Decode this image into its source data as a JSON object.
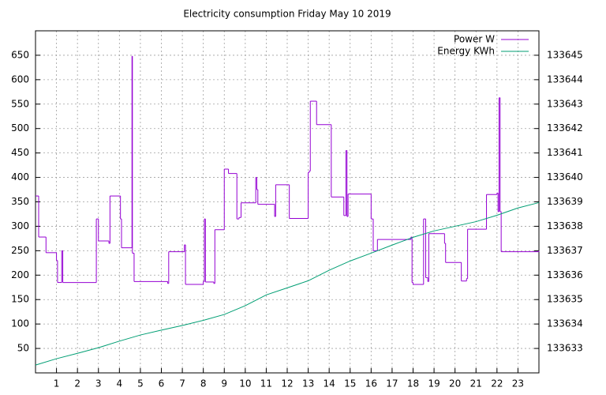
{
  "chart_data": {
    "type": "line",
    "title": "Electricity consumption Friday May 10 2019",
    "xlim": [
      0,
      24
    ],
    "xticks": [
      1,
      2,
      3,
      4,
      5,
      6,
      7,
      8,
      9,
      10,
      11,
      12,
      13,
      14,
      15,
      16,
      17,
      18,
      19,
      20,
      21,
      22,
      23
    ],
    "ylim": [
      0,
      700
    ],
    "yticks": [
      50,
      100,
      150,
      200,
      250,
      300,
      350,
      400,
      450,
      500,
      550,
      600,
      650
    ],
    "y2lim": [
      133632,
      133646
    ],
    "y2ticks": [
      133633,
      133634,
      133635,
      133636,
      133637,
      133638,
      133639,
      133640,
      133641,
      133642,
      133643,
      133644,
      133645
    ],
    "grid": true,
    "legend": "top-right",
    "series": [
      {
        "name": "Power W",
        "color": "#9400d3",
        "x": [
          0,
          0.15,
          0.5,
          1.0,
          1.05,
          1.25,
          1.3,
          2.9,
          3.0,
          3.5,
          3.55,
          4.05,
          4.1,
          4.6,
          4.62,
          4.7,
          6.3,
          6.35,
          7.1,
          7.15,
          8.0,
          8.05,
          8.1,
          8.5,
          8.55,
          9.0,
          9.2,
          9.6,
          9.7,
          9.8,
          10.5,
          10.55,
          10.6,
          11.4,
          11.45,
          12.1,
          13.0,
          13.05,
          13.1,
          13.4,
          14.1,
          14.7,
          14.8,
          14.85,
          14.9,
          16.0,
          16.1,
          16.3,
          17.9,
          17.95,
          18.0,
          18.5,
          18.6,
          18.7,
          18.75,
          19.5,
          19.55,
          20.3,
          20.55,
          20.6,
          21.5,
          22.0,
          22.05,
          22.1,
          22.15,
          22.2,
          24
        ],
        "values": [
          362,
          278,
          246,
          230,
          185,
          250,
          185,
          315,
          270,
          265,
          362,
          315,
          256,
          648,
          245,
          187,
          183,
          248,
          262,
          181,
          187,
          315,
          186,
          183,
          293,
          417,
          408,
          315,
          318,
          348,
          400,
          375,
          345,
          320,
          385,
          316,
          410,
          413,
          556,
          508,
          360,
          322,
          455,
          320,
          366,
          315,
          250,
          273,
          278,
          185,
          181,
          315,
          195,
          187,
          285,
          265,
          226,
          188,
          193,
          294,
          365,
          368,
          330,
          563,
          330,
          248,
          250
        ]
      },
      {
        "name": "Energy KWh",
        "color": "#009e73",
        "axis": "y2",
        "x": [
          0,
          1,
          2,
          3,
          4,
          5,
          6,
          7,
          8,
          9,
          10,
          11,
          12,
          13,
          14,
          15,
          16,
          17,
          18,
          19,
          20,
          21,
          22,
          23,
          24
        ],
        "values": [
          133632.32,
          133632.58,
          133632.8,
          133633.03,
          133633.3,
          133633.55,
          133633.75,
          133633.94,
          133634.15,
          133634.39,
          133634.75,
          133635.19,
          133635.48,
          133635.77,
          133636.2,
          133636.58,
          133636.9,
          133637.23,
          133637.55,
          133637.81,
          133638.0,
          133638.19,
          133638.45,
          133638.75,
          133638.97
        ]
      }
    ]
  }
}
